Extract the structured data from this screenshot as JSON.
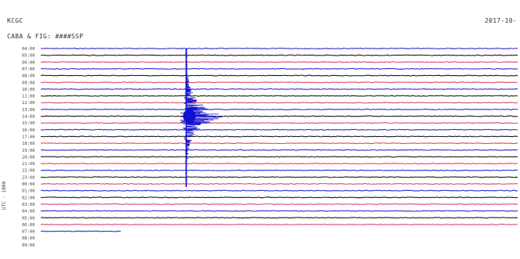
{
  "header": {
    "station": "KCGC",
    "channel": "CABA & FIG: ####SSP",
    "date": "2017-10-",
    "vertical_label": "UTC - 1000"
  },
  "colors": {
    "blue": "#2a2ad8",
    "red": "#e0466a",
    "black": "#1a1a1a",
    "event": "#1010d0"
  },
  "chart_data": {
    "type": "line",
    "title": "",
    "xlabel": "",
    "ylabel": "",
    "time_labels": [
      "04:00",
      "05:00",
      "06:00",
      "07:00",
      "08:00",
      "09:00",
      "10:00",
      "11:00",
      "12:00",
      "13:00",
      "14:00",
      "15:00",
      "16:00",
      "17:00",
      "18:00",
      "19:00",
      "20:00",
      "21:00",
      "22:00",
      "23:00",
      "00:00",
      "01:00",
      "02:00",
      "03:00",
      "04:00",
      "05:00",
      "06:00",
      "07:00",
      "08:00",
      "09:00"
    ],
    "trace_colors": [
      "blue",
      "black",
      "red",
      "blue",
      "black",
      "red",
      "blue",
      "black",
      "red",
      "blue",
      "black",
      "red",
      "blue",
      "black",
      "red",
      "blue",
      "black",
      "red",
      "blue",
      "black",
      "red",
      "blue",
      "black",
      "red",
      "blue",
      "black",
      "red",
      "blue",
      "black",
      "red"
    ],
    "event": {
      "x_fraction": 0.305,
      "row_start": 0,
      "row_end": 20,
      "peak_row": 10,
      "peak_amplitude": 52
    },
    "partial_trace": {
      "row": 27,
      "x_end_fraction": 0.17
    }
  }
}
